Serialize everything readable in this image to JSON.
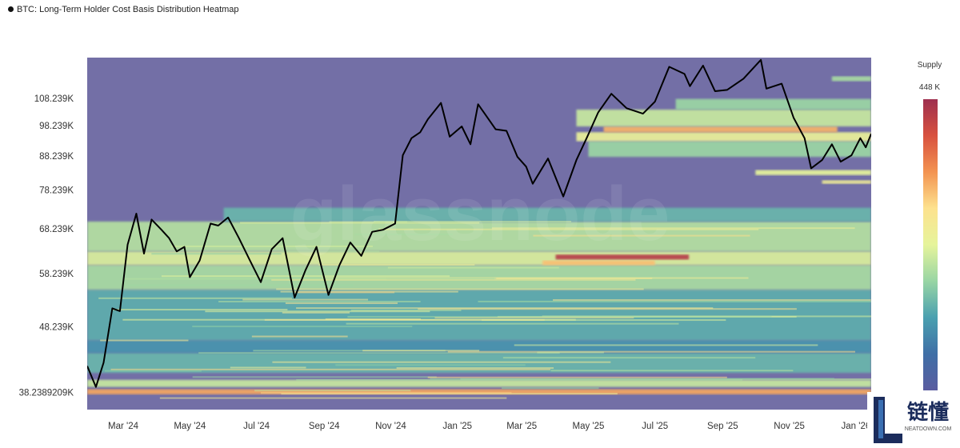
{
  "chart_title": "BTC: Long-Term Holder Cost Basis Distribution Heatmap",
  "watermark": "glassnode",
  "logo": {
    "brand_cn": "链懂",
    "brand_url": "NEATDOWN.COM"
  },
  "colorbar": {
    "title": "Supply",
    "max_label": "448 K",
    "colors": [
      "#9e2f4f",
      "#d8513f",
      "#f39351",
      "#fde28e",
      "#e6f49b",
      "#98d5a4",
      "#4aa0b0",
      "#3f6fa6",
      "#5a5ca0"
    ]
  },
  "chart_data": {
    "type": "heatmap",
    "title": "BTC: Long-Term Holder Cost Basis Distribution Heatmap",
    "x_tick_labels": [
      "Mar '24",
      "May '24",
      "Jul '24",
      "Sep '24",
      "Nov '24",
      "Jan '25",
      "Mar '25",
      "May '25",
      "Jul '25",
      "Sep '25",
      "Nov '25",
      "Jan '26"
    ],
    "y_tick_labels": [
      "108.239K",
      "98.239K",
      "88.239K",
      "78.239K",
      "68.239K",
      "58.239K",
      "48.239K",
      "38.2389209K"
    ],
    "y_scale": "log",
    "xlim": [
      "2024-01-28",
      "2026-01-15"
    ],
    "ylim": [
      36000,
      125000
    ],
    "legend": {
      "title": "Supply",
      "max": 448000,
      "placement": "right"
    },
    "heat_bands": [
      {
        "y_low": 38000,
        "y_high": 38700,
        "x_start": "2024-01-28",
        "x_end": "2026-01-15",
        "intensity": 0.72
      },
      {
        "y_low": 39000,
        "y_high": 40000,
        "x_start": "2024-01-28",
        "x_end": "2026-01-15",
        "intensity": 0.45
      },
      {
        "y_low": 41000,
        "y_high": 44000,
        "x_start": "2024-01-28",
        "x_end": "2026-01-15",
        "intensity": 0.3
      },
      {
        "y_low": 44000,
        "y_high": 46000,
        "x_start": "2024-01-28",
        "x_end": "2026-01-15",
        "intensity": 0.22
      },
      {
        "y_low": 46000,
        "y_high": 55000,
        "x_start": "2024-01-28",
        "x_end": "2026-01-15",
        "intensity": 0.28
      },
      {
        "y_low": 55000,
        "y_high": 60000,
        "x_start": "2024-01-28",
        "x_end": "2026-01-15",
        "intensity": 0.4
      },
      {
        "y_low": 60000,
        "y_high": 63000,
        "x_start": "2024-01-28",
        "x_end": "2026-01-15",
        "intensity": 0.48
      },
      {
        "y_low": 63000,
        "y_high": 70000,
        "x_start": "2024-01-28",
        "x_end": "2026-01-15",
        "intensity": 0.42
      },
      {
        "y_low": 70000,
        "y_high": 73500,
        "x_start": "2024-06-01",
        "x_end": "2026-01-15",
        "intensity": 0.3
      },
      {
        "y_low": 61200,
        "y_high": 62300,
        "x_start": "2025-04-01",
        "x_end": "2025-08-01",
        "intensity": 0.95
      },
      {
        "y_low": 60000,
        "y_high": 61000,
        "x_start": "2025-03-20",
        "x_end": "2025-07-01",
        "intensity": 0.68
      },
      {
        "y_low": 82500,
        "y_high": 84000,
        "x_start": "2025-10-01",
        "x_end": "2026-01-15",
        "intensity": 0.5
      },
      {
        "y_low": 80000,
        "y_high": 81000,
        "x_start": "2025-12-01",
        "x_end": "2026-01-15",
        "intensity": 0.55
      },
      {
        "y_low": 88000,
        "y_high": 93000,
        "x_start": "2025-05-01",
        "x_end": "2026-01-15",
        "intensity": 0.38
      },
      {
        "y_low": 93000,
        "y_high": 96000,
        "x_start": "2025-04-20",
        "x_end": "2026-01-15",
        "intensity": 0.52
      },
      {
        "y_low": 96000,
        "y_high": 98000,
        "x_start": "2025-05-15",
        "x_end": "2025-12-15",
        "intensity": 0.7
      },
      {
        "y_low": 98000,
        "y_high": 104000,
        "x_start": "2025-04-20",
        "x_end": "2026-01-15",
        "intensity": 0.45
      },
      {
        "y_low": 104000,
        "y_high": 108000,
        "x_start": "2025-07-20",
        "x_end": "2026-01-15",
        "intensity": 0.38
      },
      {
        "y_low": 115000,
        "y_high": 117000,
        "x_start": "2025-12-10",
        "x_end": "2026-01-15",
        "intensity": 0.4
      }
    ],
    "series": [
      {
        "type": "line",
        "color": "#000000",
        "points": [
          [
            "2024-01-28",
            42000
          ],
          [
            "2024-02-05",
            39000
          ],
          [
            "2024-02-12",
            42500
          ],
          [
            "2024-02-20",
            51500
          ],
          [
            "2024-02-27",
            51000
          ],
          [
            "2024-03-05",
            64500
          ],
          [
            "2024-03-13",
            72000
          ],
          [
            "2024-03-20",
            62500
          ],
          [
            "2024-03-27",
            70500
          ],
          [
            "2024-04-05",
            68000
          ],
          [
            "2024-04-12",
            66000
          ],
          [
            "2024-04-19",
            63000
          ],
          [
            "2024-04-26",
            64000
          ],
          [
            "2024-05-01",
            57500
          ],
          [
            "2024-05-10",
            61000
          ],
          [
            "2024-05-20",
            69500
          ],
          [
            "2024-05-27",
            69000
          ],
          [
            "2024-06-05",
            71000
          ],
          [
            "2024-06-15",
            66000
          ],
          [
            "2024-06-25",
            61000
          ],
          [
            "2024-07-05",
            56500
          ],
          [
            "2024-07-15",
            63500
          ],
          [
            "2024-07-25",
            66000
          ],
          [
            "2024-08-05",
            53500
          ],
          [
            "2024-08-15",
            59000
          ],
          [
            "2024-08-25",
            64000
          ],
          [
            "2024-09-05",
            54000
          ],
          [
            "2024-09-15",
            60000
          ],
          [
            "2024-09-25",
            65000
          ],
          [
            "2024-10-05",
            62000
          ],
          [
            "2024-10-15",
            67500
          ],
          [
            "2024-10-25",
            68000
          ],
          [
            "2024-11-05",
            69500
          ],
          [
            "2024-11-12",
            88500
          ],
          [
            "2024-11-20",
            94000
          ],
          [
            "2024-11-28",
            96000
          ],
          [
            "2024-12-05",
            100500
          ],
          [
            "2024-12-17",
            106500
          ],
          [
            "2024-12-25",
            94500
          ],
          [
            "2025-01-05",
            98000
          ],
          [
            "2025-01-13",
            92000
          ],
          [
            "2025-01-20",
            106000
          ],
          [
            "2025-01-27",
            102000
          ],
          [
            "2025-02-05",
            97000
          ],
          [
            "2025-02-15",
            96500
          ],
          [
            "2025-02-25",
            88000
          ],
          [
            "2025-03-05",
            85000
          ],
          [
            "2025-03-11",
            80000
          ],
          [
            "2025-03-25",
            87500
          ],
          [
            "2025-04-08",
            76500
          ],
          [
            "2025-04-20",
            87000
          ],
          [
            "2025-04-30",
            94500
          ],
          [
            "2025-05-10",
            103000
          ],
          [
            "2025-05-22",
            110000
          ],
          [
            "2025-06-05",
            104500
          ],
          [
            "2025-06-20",
            102500
          ],
          [
            "2025-07-01",
            107000
          ],
          [
            "2025-07-14",
            121000
          ],
          [
            "2025-07-28",
            118000
          ],
          [
            "2025-08-02",
            113000
          ],
          [
            "2025-08-14",
            121500
          ],
          [
            "2025-08-25",
            111000
          ],
          [
            "2025-09-05",
            111500
          ],
          [
            "2025-09-20",
            116000
          ],
          [
            "2025-10-06",
            124000
          ],
          [
            "2025-10-11",
            112000
          ],
          [
            "2025-10-25",
            114000
          ],
          [
            "2025-11-05",
            101000
          ],
          [
            "2025-11-15",
            94000
          ],
          [
            "2025-11-21",
            84500
          ],
          [
            "2025-12-01",
            87000
          ],
          [
            "2025-12-10",
            92000
          ],
          [
            "2025-12-18",
            86500
          ],
          [
            "2025-12-28",
            88500
          ],
          [
            "2026-01-05",
            94000
          ],
          [
            "2026-01-10",
            91000
          ],
          [
            "2026-01-15",
            95500
          ]
        ]
      }
    ]
  }
}
